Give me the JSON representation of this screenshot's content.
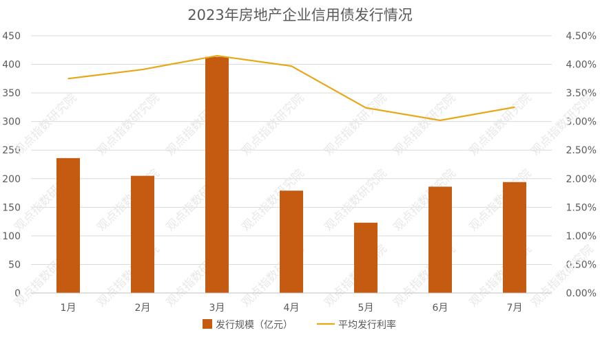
{
  "chart_data": {
    "type": "bar",
    "title": "2023年房地产企业信用债发行情况",
    "categories": [
      "1月",
      "2月",
      "3月",
      "4月",
      "5月",
      "6月",
      "7月"
    ],
    "series": [
      {
        "name": "发行规模（亿元）",
        "type": "bar",
        "axis": "left",
        "values": [
          236,
          205,
          413,
          179,
          123,
          186,
          194
        ]
      },
      {
        "name": "平均发行利率",
        "type": "line",
        "axis": "right",
        "values": [
          3.75,
          3.91,
          4.15,
          3.97,
          3.24,
          3.02,
          3.25
        ]
      }
    ],
    "ylim_left": [
      0,
      450
    ],
    "yticks_left": [
      "0",
      "50",
      "100",
      "150",
      "200",
      "250",
      "300",
      "350",
      "400",
      "450"
    ],
    "ylim_right": [
      0,
      4.5
    ],
    "yticks_right": [
      "0.00%",
      "0.50%",
      "1.00%",
      "1.50%",
      "2.00%",
      "2.50%",
      "3.00%",
      "3.50%",
      "4.00%",
      "4.50%"
    ],
    "grid": true,
    "legend_position": "bottom",
    "colors": {
      "bar": "#C55A11",
      "line": "#E6A817",
      "grid": "#D9D9D9",
      "text": "#595959"
    },
    "watermark": "观点指数研究院"
  }
}
